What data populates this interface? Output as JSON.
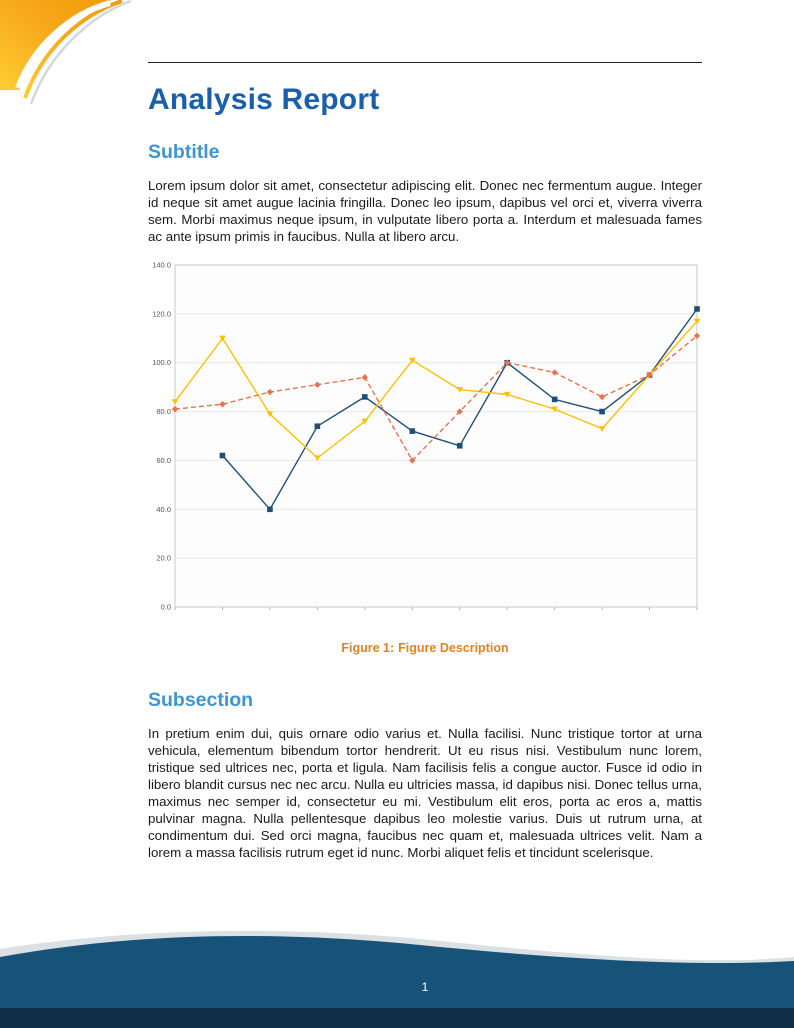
{
  "colors": {
    "title_blue": "#1A5FAD",
    "heading_blue": "#3E96D4",
    "caption_orange": "#E5821F",
    "rule_dark": "#222222",
    "footer_navy": "#175379",
    "footer_dark": "#102E47",
    "footer_light_wave": "#C2CBD2",
    "corner_yellow": "#FFCC33",
    "corner_orange": "#F29B0B"
  },
  "header": {
    "title": "Analysis Report"
  },
  "sections": [
    {
      "heading": "Subtitle",
      "body": "Lorem ipsum dolor sit amet, consectetur adipiscing elit. Donec nec fermentum augue. Integer id neque sit amet augue lacinia fringilla. Donec leo ipsum, dapibus vel orci et, viverra viverra sem. Morbi maximus neque ipsum, in vulputate libero porta a. Interdum et malesuada fames ac ante ipsum primis in faucibus. Nulla at libero arcu."
    },
    {
      "heading": "Subsection",
      "body": "In pretium enim dui, quis ornare odio varius et. Nulla facilisi. Nunc tristique tortor at urna vehicula, elementum bibendum tortor hendrerit. Ut eu risus nisi. Vestibulum nunc lorem, tristique sed ultrices nec, porta et ligula. Nam facilisis felis a congue auctor. Fusce id odio in libero blandit cursus nec nec arcu. Nulla eu ultricies massa, id dapibus nisi. Donec tellus urna, maximus nec semper id, consectetur eu mi. Vestibulum elit eros, porta ac eros a, mattis pulvinar magna. Nulla pellentesque dapibus leo molestie varius. Duis ut rutrum urna, at condimentum dui. Sed orci magna, faucibus nec quam et, malesuada ultrices velit. Nam a lorem a massa facilisis rutrum eget id nunc. Morbi aliquet felis et tincidunt scelerisque."
    }
  ],
  "figure": {
    "caption_label": "Figure 1:",
    "caption_text": "Figure Description"
  },
  "footer": {
    "page_number": "1"
  },
  "chart_data": {
    "type": "line",
    "x": [
      1,
      2,
      3,
      4,
      5,
      6,
      7,
      8,
      9,
      10,
      11,
      12
    ],
    "series": [
      {
        "name": "series-blue",
        "color": "#1F4E79",
        "style": "solid",
        "marker": "square",
        "values": [
          null,
          62,
          40,
          74,
          86,
          72,
          66,
          100,
          85,
          80,
          95,
          122
        ]
      },
      {
        "name": "series-yellow",
        "color": "#FFC000",
        "style": "solid",
        "marker": "triangle",
        "values": [
          84,
          110,
          79,
          61,
          76,
          101,
          89,
          87,
          81,
          73,
          95,
          117
        ]
      },
      {
        "name": "series-red",
        "color": "#E8734F",
        "style": "dashed",
        "marker": "diamond",
        "values": [
          81,
          83,
          88,
          91,
          94,
          60,
          80,
          100,
          96,
          86,
          95,
          111
        ]
      }
    ],
    "ylim": [
      0,
      140
    ],
    "yticks": [
      "0.0",
      "20.0",
      "40.0",
      "60.0",
      "80.0",
      "100.0",
      "120.0",
      "140.0"
    ],
    "xlabel": "",
    "ylabel": "",
    "title": "",
    "grid": true,
    "legend": "none"
  }
}
